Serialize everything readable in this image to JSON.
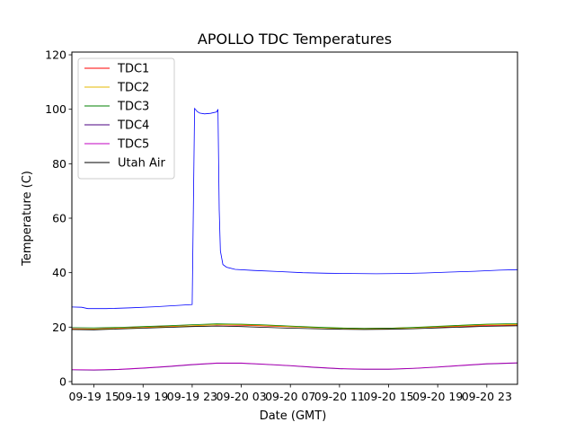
{
  "chart_data": {
    "type": "line",
    "title": "APOLLO TDC Temperatures",
    "xlabel": "Date (GMT)",
    "ylabel": "Temperature (C)",
    "x_unit": "hours since 09-19 11:00 GMT",
    "xlim": [
      2.2,
      38.5
    ],
    "ylim": [
      -1,
      121
    ],
    "yticks": [
      0,
      20,
      40,
      60,
      80,
      100,
      120
    ],
    "xticks": [
      {
        "x": 4,
        "label": "09-19 15"
      },
      {
        "x": 8,
        "label": "09-19 19"
      },
      {
        "x": 12,
        "label": "09-19 23"
      },
      {
        "x": 16,
        "label": "09-20 03"
      },
      {
        "x": 20,
        "label": "09-20 07"
      },
      {
        "x": 24,
        "label": "09-20 11"
      },
      {
        "x": 28,
        "label": "09-20 15"
      },
      {
        "x": 32,
        "label": "09-20 19"
      },
      {
        "x": 36,
        "label": "09-20 23"
      }
    ],
    "legend_position": "top-left",
    "series": [
      {
        "name": "TDC1",
        "color": "#ff0000",
        "x": [
          2.2,
          4,
          6,
          8,
          10,
          12,
          14,
          16,
          18,
          20,
          22,
          24,
          26,
          28,
          30,
          32,
          34,
          36,
          38.5
        ],
        "y": [
          19.4,
          19.3,
          19.6,
          19.9,
          20.2,
          20.5,
          20.8,
          20.7,
          20.4,
          20.1,
          19.8,
          19.6,
          19.5,
          19.6,
          19.8,
          20.0,
          20.3,
          20.6,
          20.8
        ]
      },
      {
        "name": "TDC2",
        "color": "#e6b800",
        "x": [
          2.2,
          4,
          6,
          8,
          10,
          12,
          14,
          16,
          18,
          20,
          22,
          24,
          26,
          28,
          30,
          32,
          34,
          36,
          38.5
        ],
        "y": [
          19.2,
          19.2,
          19.5,
          19.8,
          20.1,
          20.5,
          20.9,
          20.9,
          20.6,
          20.2,
          19.8,
          19.5,
          19.3,
          19.4,
          19.7,
          20.1,
          20.5,
          20.9,
          21.0
        ]
      },
      {
        "name": "TDC3",
        "color": "#008000",
        "x": [
          2.2,
          4,
          6,
          8,
          10,
          12,
          14,
          16,
          18,
          20,
          22,
          24,
          26,
          28,
          30,
          32,
          34,
          36,
          38.5
        ],
        "y": [
          19.8,
          19.7,
          19.9,
          20.2,
          20.5,
          20.9,
          21.2,
          21.1,
          20.8,
          20.4,
          20.0,
          19.7,
          19.5,
          19.6,
          19.9,
          20.3,
          20.7,
          21.1,
          21.3
        ]
      },
      {
        "name": "TDC4",
        "color": "#4b0082",
        "x": [
          2.2,
          4,
          6,
          8,
          10,
          12,
          14,
          16,
          18,
          20,
          22,
          24,
          26,
          28,
          30,
          32,
          34,
          36,
          38.5
        ],
        "y": [
          4.3,
          4.2,
          4.4,
          4.9,
          5.5,
          6.2,
          6.7,
          6.7,
          6.3,
          5.8,
          5.2,
          4.7,
          4.5,
          4.5,
          4.8,
          5.3,
          5.9,
          6.5,
          6.8
        ]
      },
      {
        "name": "TDC5",
        "color": "#c000c0",
        "x": [
          2.2,
          4,
          6,
          8,
          10,
          12,
          14,
          16,
          18,
          20,
          22,
          24,
          26,
          28,
          30,
          32,
          34,
          36,
          38.5
        ],
        "y": [
          4.4,
          4.3,
          4.5,
          5.0,
          5.6,
          6.3,
          6.8,
          6.8,
          6.4,
          5.9,
          5.3,
          4.8,
          4.6,
          4.6,
          4.9,
          5.4,
          6.0,
          6.6,
          6.9
        ]
      },
      {
        "name": "Utah Air",
        "color": "#000000",
        "x": [
          2.2,
          4,
          6,
          8,
          10,
          12,
          14,
          16,
          18,
          20,
          22,
          24,
          26,
          28,
          30,
          32,
          34,
          36,
          38.5
        ],
        "y": [
          19.1,
          19.0,
          19.3,
          19.6,
          19.9,
          20.2,
          20.4,
          20.2,
          19.9,
          19.6,
          19.4,
          19.2,
          19.1,
          19.2,
          19.4,
          19.7,
          20.0,
          20.3,
          20.5
        ]
      },
      {
        "name": "Overall",
        "color": "#0000ff",
        "in_legend": false,
        "x": [
          2.2,
          3.0,
          3.5,
          5,
          7,
          9,
          11,
          12.0,
          12.2,
          12.4,
          12.6,
          13.0,
          13.5,
          14.0,
          14.1,
          14.2,
          14.3,
          14.5,
          14.8,
          15.5,
          17,
          19,
          21,
          23,
          25,
          27,
          29,
          31,
          33,
          35,
          37,
          38.5
        ],
        "y": [
          27.4,
          27.3,
          26.8,
          26.8,
          27.1,
          27.5,
          28.0,
          28.3,
          100.3,
          99.2,
          98.6,
          98.3,
          98.5,
          99.0,
          100.0,
          63.0,
          48.0,
          43.0,
          42.0,
          41.2,
          40.8,
          40.4,
          40.0,
          39.8,
          39.7,
          39.6,
          39.7,
          39.9,
          40.2,
          40.5,
          40.9,
          41.1
        ]
      }
    ]
  }
}
